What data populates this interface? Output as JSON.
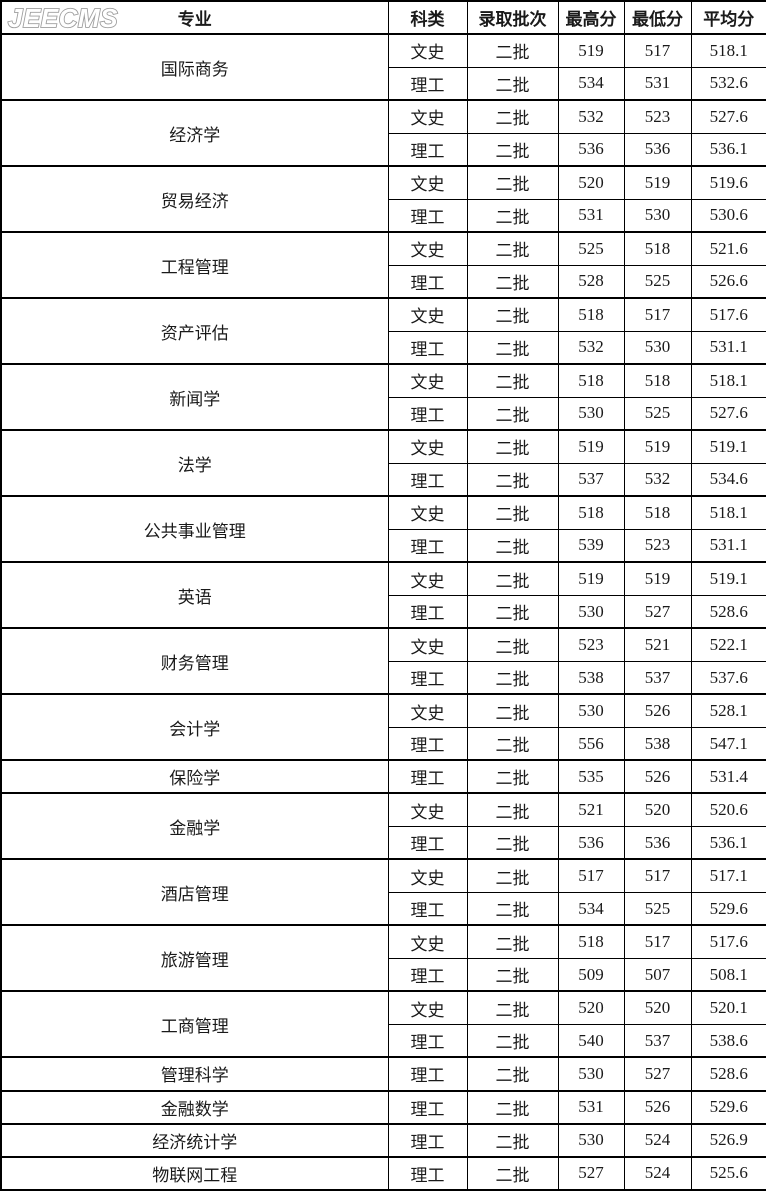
{
  "logo": {
    "text": "JEECMS"
  },
  "colors": {
    "border": "#000000",
    "text": "#1a1a1a",
    "logo_outline": "#9e9e9e",
    "logo_fill": "#ffffff"
  },
  "table": {
    "headers": [
      "专业",
      "科类",
      "录取批次",
      "最高分",
      "最低分",
      "平均分"
    ],
    "rows": [
      {
        "major": "国际商务",
        "entries": [
          {
            "category": "文史",
            "batch": "二批",
            "max": "519",
            "min": "517",
            "avg": "518.1"
          },
          {
            "category": "理工",
            "batch": "二批",
            "max": "534",
            "min": "531",
            "avg": "532.6"
          }
        ]
      },
      {
        "major": "经济学",
        "entries": [
          {
            "category": "文史",
            "batch": "二批",
            "max": "532",
            "min": "523",
            "avg": "527.6"
          },
          {
            "category": "理工",
            "batch": "二批",
            "max": "536",
            "min": "536",
            "avg": "536.1"
          }
        ]
      },
      {
        "major": "贸易经济",
        "entries": [
          {
            "category": "文史",
            "batch": "二批",
            "max": "520",
            "min": "519",
            "avg": "519.6"
          },
          {
            "category": "理工",
            "batch": "二批",
            "max": "531",
            "min": "530",
            "avg": "530.6"
          }
        ]
      },
      {
        "major": "工程管理",
        "entries": [
          {
            "category": "文史",
            "batch": "二批",
            "max": "525",
            "min": "518",
            "avg": "521.6"
          },
          {
            "category": "理工",
            "batch": "二批",
            "max": "528",
            "min": "525",
            "avg": "526.6"
          }
        ]
      },
      {
        "major": "资产评估",
        "entries": [
          {
            "category": "文史",
            "batch": "二批",
            "max": "518",
            "min": "517",
            "avg": "517.6"
          },
          {
            "category": "理工",
            "batch": "二批",
            "max": "532",
            "min": "530",
            "avg": "531.1"
          }
        ]
      },
      {
        "major": "新闻学",
        "entries": [
          {
            "category": "文史",
            "batch": "二批",
            "max": "518",
            "min": "518",
            "avg": "518.1"
          },
          {
            "category": "理工",
            "batch": "二批",
            "max": "530",
            "min": "525",
            "avg": "527.6"
          }
        ]
      },
      {
        "major": "法学",
        "entries": [
          {
            "category": "文史",
            "batch": "二批",
            "max": "519",
            "min": "519",
            "avg": "519.1"
          },
          {
            "category": "理工",
            "batch": "二批",
            "max": "537",
            "min": "532",
            "avg": "534.6"
          }
        ]
      },
      {
        "major": "公共事业管理",
        "entries": [
          {
            "category": "文史",
            "batch": "二批",
            "max": "518",
            "min": "518",
            "avg": "518.1"
          },
          {
            "category": "理工",
            "batch": "二批",
            "max": "539",
            "min": "523",
            "avg": "531.1"
          }
        ]
      },
      {
        "major": "英语",
        "entries": [
          {
            "category": "文史",
            "batch": "二批",
            "max": "519",
            "min": "519",
            "avg": "519.1"
          },
          {
            "category": "理工",
            "batch": "二批",
            "max": "530",
            "min": "527",
            "avg": "528.6"
          }
        ]
      },
      {
        "major": "财务管理",
        "entries": [
          {
            "category": "文史",
            "batch": "二批",
            "max": "523",
            "min": "521",
            "avg": "522.1"
          },
          {
            "category": "理工",
            "batch": "二批",
            "max": "538",
            "min": "537",
            "avg": "537.6"
          }
        ]
      },
      {
        "major": "会计学",
        "entries": [
          {
            "category": "文史",
            "batch": "二批",
            "max": "530",
            "min": "526",
            "avg": "528.1"
          },
          {
            "category": "理工",
            "batch": "二批",
            "max": "556",
            "min": "538",
            "avg": "547.1"
          }
        ]
      },
      {
        "major": "保险学",
        "entries": [
          {
            "category": "理工",
            "batch": "二批",
            "max": "535",
            "min": "526",
            "avg": "531.4"
          }
        ]
      },
      {
        "major": "金融学",
        "entries": [
          {
            "category": "文史",
            "batch": "二批",
            "max": "521",
            "min": "520",
            "avg": "520.6"
          },
          {
            "category": "理工",
            "batch": "二批",
            "max": "536",
            "min": "536",
            "avg": "536.1"
          }
        ]
      },
      {
        "major": "酒店管理",
        "entries": [
          {
            "category": "文史",
            "batch": "二批",
            "max": "517",
            "min": "517",
            "avg": "517.1"
          },
          {
            "category": "理工",
            "batch": "二批",
            "max": "534",
            "min": "525",
            "avg": "529.6"
          }
        ]
      },
      {
        "major": "旅游管理",
        "entries": [
          {
            "category": "文史",
            "batch": "二批",
            "max": "518",
            "min": "517",
            "avg": "517.6"
          },
          {
            "category": "理工",
            "batch": "二批",
            "max": "509",
            "min": "507",
            "avg": "508.1"
          }
        ]
      },
      {
        "major": "工商管理",
        "entries": [
          {
            "category": "文史",
            "batch": "二批",
            "max": "520",
            "min": "520",
            "avg": "520.1"
          },
          {
            "category": "理工",
            "batch": "二批",
            "max": "540",
            "min": "537",
            "avg": "538.6"
          }
        ]
      },
      {
        "major": "管理科学",
        "entries": [
          {
            "category": "理工",
            "batch": "二批",
            "max": "530",
            "min": "527",
            "avg": "528.6"
          }
        ]
      },
      {
        "major": "金融数学",
        "entries": [
          {
            "category": "理工",
            "batch": "二批",
            "max": "531",
            "min": "526",
            "avg": "529.6"
          }
        ]
      },
      {
        "major": "经济统计学",
        "entries": [
          {
            "category": "理工",
            "batch": "二批",
            "max": "530",
            "min": "524",
            "avg": "526.9"
          }
        ]
      },
      {
        "major": "物联网工程",
        "entries": [
          {
            "category": "理工",
            "batch": "二批",
            "max": "527",
            "min": "524",
            "avg": "525.6"
          }
        ]
      }
    ]
  }
}
